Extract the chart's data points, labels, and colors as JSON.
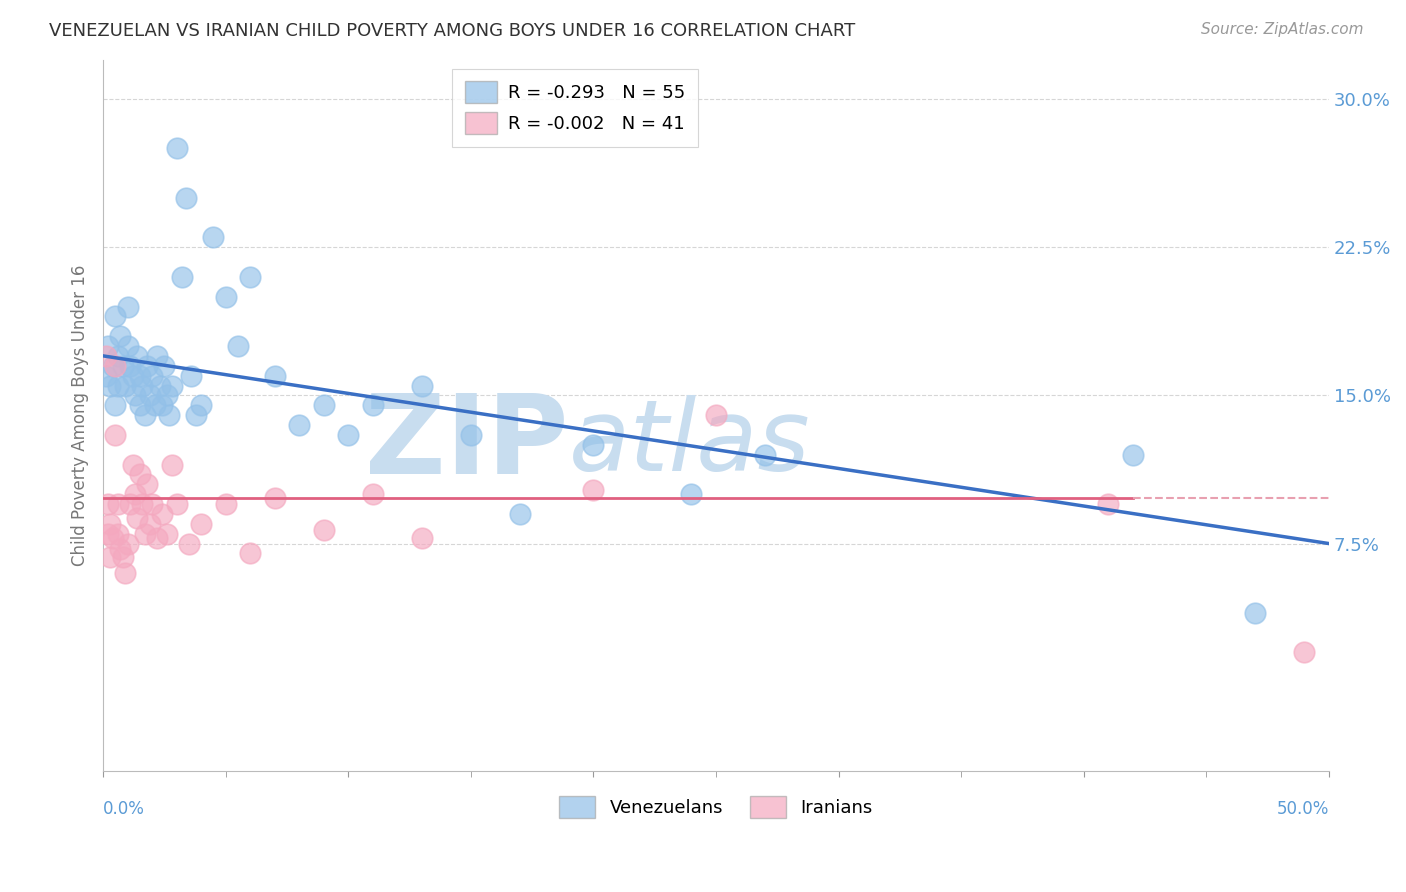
{
  "title": "VENEZUELAN VS IRANIAN CHILD POVERTY AMONG BOYS UNDER 16 CORRELATION CHART",
  "source": "Source: ZipAtlas.com",
  "ylabel": "Child Poverty Among Boys Under 16",
  "xlim": [
    0.0,
    0.5
  ],
  "ylim": [
    -0.04,
    0.32
  ],
  "yticks": [
    0.075,
    0.15,
    0.225,
    0.3
  ],
  "ytick_labels": [
    "7.5%",
    "15.0%",
    "22.5%",
    "30.0%"
  ],
  "xtick_left_label": "0.0%",
  "xtick_right_label": "50.0%",
  "venezuelan_color": "#92C0E8",
  "iranian_color": "#F4A8BF",
  "legend_label_1": "R = -0.293   N = 55",
  "legend_label_2": "R = -0.002   N = 41",
  "watermark": "ZIPatlas",
  "watermark_zip": "ZIP",
  "watermark_atlas": "atlas",
  "watermark_color": "#C8DDEF",
  "venezuelan_x": [
    0.001,
    0.002,
    0.003,
    0.004,
    0.005,
    0.005,
    0.006,
    0.006,
    0.007,
    0.008,
    0.009,
    0.01,
    0.01,
    0.011,
    0.012,
    0.013,
    0.014,
    0.015,
    0.015,
    0.016,
    0.017,
    0.018,
    0.019,
    0.02,
    0.021,
    0.022,
    0.023,
    0.024,
    0.025,
    0.026,
    0.027,
    0.028,
    0.03,
    0.032,
    0.034,
    0.036,
    0.038,
    0.04,
    0.045,
    0.05,
    0.055,
    0.06,
    0.07,
    0.08,
    0.09,
    0.1,
    0.11,
    0.13,
    0.15,
    0.17,
    0.2,
    0.24,
    0.27,
    0.42,
    0.47
  ],
  "venezuelan_y": [
    0.16,
    0.175,
    0.155,
    0.165,
    0.19,
    0.145,
    0.17,
    0.155,
    0.18,
    0.165,
    0.155,
    0.195,
    0.175,
    0.165,
    0.16,
    0.15,
    0.17,
    0.145,
    0.16,
    0.155,
    0.14,
    0.165,
    0.15,
    0.16,
    0.145,
    0.17,
    0.155,
    0.145,
    0.165,
    0.15,
    0.14,
    0.155,
    0.275,
    0.21,
    0.25,
    0.16,
    0.14,
    0.145,
    0.23,
    0.2,
    0.175,
    0.21,
    0.16,
    0.135,
    0.145,
    0.13,
    0.145,
    0.155,
    0.13,
    0.09,
    0.125,
    0.1,
    0.12,
    0.12,
    0.04
  ],
  "iranian_x": [
    0.001,
    0.002,
    0.002,
    0.003,
    0.003,
    0.004,
    0.005,
    0.005,
    0.006,
    0.006,
    0.007,
    0.008,
    0.009,
    0.01,
    0.011,
    0.012,
    0.013,
    0.014,
    0.015,
    0.016,
    0.017,
    0.018,
    0.019,
    0.02,
    0.022,
    0.024,
    0.026,
    0.028,
    0.03,
    0.035,
    0.04,
    0.05,
    0.06,
    0.07,
    0.09,
    0.11,
    0.13,
    0.2,
    0.25,
    0.41,
    0.49
  ],
  "iranian_y": [
    0.17,
    0.08,
    0.095,
    0.068,
    0.085,
    0.078,
    0.165,
    0.13,
    0.095,
    0.08,
    0.072,
    0.068,
    0.06,
    0.075,
    0.095,
    0.115,
    0.1,
    0.088,
    0.11,
    0.095,
    0.08,
    0.105,
    0.085,
    0.095,
    0.078,
    0.09,
    0.08,
    0.115,
    0.095,
    0.075,
    0.085,
    0.095,
    0.07,
    0.098,
    0.082,
    0.1,
    0.078,
    0.102,
    0.14,
    0.095,
    0.02
  ],
  "blue_line_start_y": 0.17,
  "blue_line_end_y": 0.075,
  "pink_line_y": 0.098,
  "blue_line_color": "#3A6FC4",
  "pink_line_color": "#E06080",
  "pink_dashed_color": "#E8A0B0",
  "background_color": "#FFFFFF",
  "grid_color": "#CCCCCC",
  "tick_color": "#5B9BD5",
  "title_color": "#333333"
}
